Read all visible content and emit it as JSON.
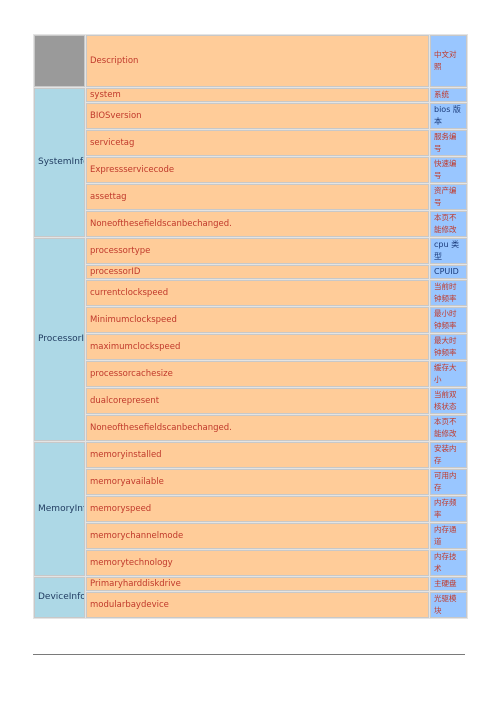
{
  "header": {
    "description": "Description",
    "chinese": "中文对照"
  },
  "groups": [
    {
      "name": "SystemInfo",
      "rows": [
        {
          "desc": "system",
          "cn": "系统"
        },
        {
          "desc": "BIOSversion",
          "cn": "bios 版本"
        },
        {
          "desc": "servicetag",
          "cn": "服务编号"
        },
        {
          "desc": "Expressservicecode",
          "cn": "快速编号"
        },
        {
          "desc": "assettag",
          "cn": "资产编号"
        },
        {
          "desc": "Noneofthesefieldscanbechanged.",
          "cn": "本页不能修改"
        }
      ]
    },
    {
      "name": "ProcessorInfo",
      "rows": [
        {
          "desc": "processortype",
          "cn": "cpu 类型"
        },
        {
          "desc": "processorID",
          "cn": "CPUID"
        },
        {
          "desc": "currentclockspeed",
          "cn": "当前时钟频率"
        },
        {
          "desc": "Minimumclockspeed",
          "cn": "最小时钟频率"
        },
        {
          "desc": "maximumclockspeed",
          "cn": "最大时钟频率"
        },
        {
          "desc": "processorcachesize",
          "cn": "缓存大小"
        },
        {
          "desc": "dualcorepresent",
          "cn": "当前双核状态"
        },
        {
          "desc": "Noneofthesefieldscanbechanged.",
          "cn": "本页不能修改"
        }
      ]
    },
    {
      "name": "MemoryInfo",
      "rows": [
        {
          "desc": "memoryinstalled",
          "cn": "安装内存"
        },
        {
          "desc": "memoryavailable",
          "cn": "可用内存"
        },
        {
          "desc": "memoryspeed",
          "cn": "内存频率"
        },
        {
          "desc": "memorychannelmode",
          "cn": "内存通道"
        },
        {
          "desc": "memorytechnology",
          "cn": "内存技术"
        }
      ]
    },
    {
      "name": "DeviceInfo",
      "rows": [
        {
          "desc": "Primaryharddiskdrive",
          "cn": "主硬盘"
        },
        {
          "desc": "modularbaydevice",
          "cn": "光驱模块"
        }
      ]
    }
  ]
}
